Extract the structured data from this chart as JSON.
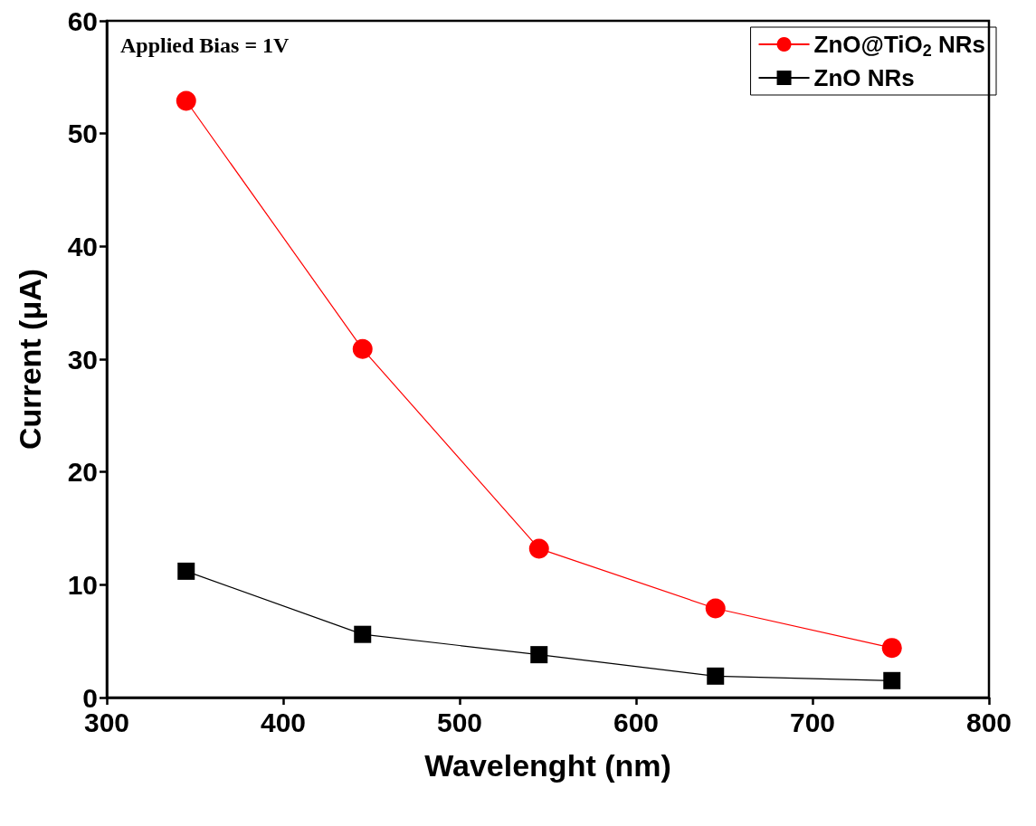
{
  "chart_data": {
    "type": "line",
    "xlabel": "Wavelenght (nm)",
    "ylabel": "Current (μA)",
    "annotations": [
      "Applied Bias = 1V"
    ],
    "x": [
      345,
      445,
      545,
      645,
      745
    ],
    "series": [
      {
        "name": "ZnO@TiO$_{2}$ NRs",
        "color": "#ff0000",
        "marker": "circle",
        "values": [
          52.9,
          30.9,
          13.2,
          7.9,
          4.4
        ]
      },
      {
        "name": "ZnO NRs",
        "color": "#000000",
        "marker": "square",
        "values": [
          11.2,
          5.6,
          3.8,
          1.9,
          1.5
        ]
      }
    ],
    "xlim": [
      300,
      800
    ],
    "xticks": [
      300,
      400,
      500,
      600,
      700,
      800
    ],
    "ylim": [
      0,
      60
    ],
    "yticks": [
      0,
      10,
      20,
      30,
      40,
      50,
      60
    ],
    "grid": false,
    "legend": "top right",
    "line_style": "solid"
  }
}
